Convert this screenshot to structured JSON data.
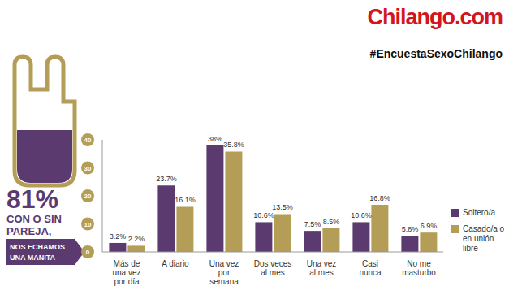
{
  "chart_data": {
    "type": "bar",
    "logo": "Chilango.com",
    "title": "#EncuestaSexoChilango",
    "annotations": [
      "81%",
      "CON O SIN",
      "PAREJA,",
      "NOS ECHAMOS",
      "UNA MANITA"
    ],
    "categories": [
      "Más de una vez por día",
      "A diario",
      "Una vez por semana",
      "Dos veces al mes",
      "Una vez al mes",
      "Casi nunca",
      "No me masturbo"
    ],
    "series": [
      {
        "name": "Soltero/a",
        "color": "#5b3b6f",
        "values": [
          3.2,
          23.7,
          38,
          10.6,
          7.5,
          10.6,
          5.8
        ],
        "value_labels": [
          "3.2%",
          "23.7%",
          "38%",
          "10.6%",
          "7.5%",
          "10.6%",
          "5.8%"
        ]
      },
      {
        "name": "Casado/a o en unión libre",
        "color": "#b39d57",
        "values": [
          2.2,
          16.1,
          35.8,
          13.5,
          8.5,
          16.8,
          6.9
        ],
        "value_labels": [
          "2.2%",
          "16.1%",
          "35.8%",
          "13.5%",
          "8.5%",
          "16.8%",
          "6.9%"
        ]
      }
    ],
    "ylim": [
      0,
      40
    ],
    "yticks": [
      0,
      10,
      20,
      30,
      40
    ],
    "grid": false,
    "legend": "right",
    "data_labels": true
  }
}
